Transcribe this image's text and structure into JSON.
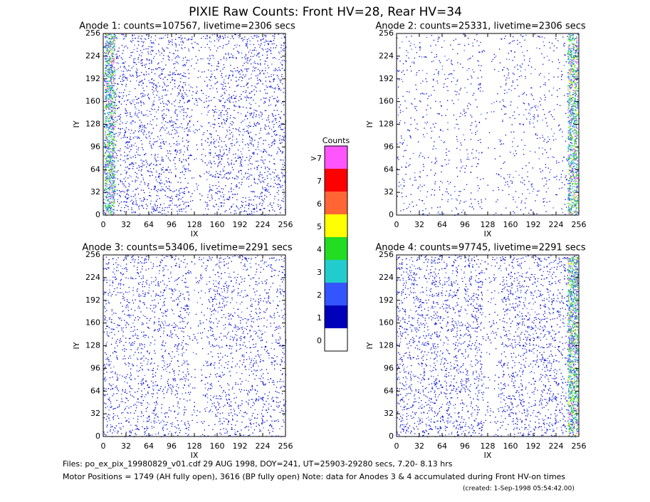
{
  "header": {
    "title": "PIXIE Raw Counts:  Front HV=28, Rear HV=34"
  },
  "chart_data": [
    {
      "type": "heatmap",
      "title": "Anode 1: counts=107567, livetime=2306 secs",
      "xlabel": "IX",
      "ylabel": "IY",
      "xlim": [
        0,
        256
      ],
      "ylim": [
        0,
        256
      ],
      "xticks": [
        0,
        32,
        64,
        96,
        128,
        160,
        192,
        224,
        256
      ],
      "yticks": [
        0,
        32,
        64,
        96,
        128,
        160,
        192,
        224,
        256
      ]
    },
    {
      "type": "heatmap",
      "title": "Anode 2: counts=25331, livetime=2306 secs",
      "xlabel": "IX",
      "ylabel": "IY",
      "xlim": [
        0,
        256
      ],
      "ylim": [
        0,
        256
      ],
      "xticks": [
        0,
        32,
        64,
        96,
        128,
        160,
        192,
        224,
        256
      ],
      "yticks": [
        0,
        32,
        64,
        96,
        128,
        160,
        192,
        224,
        256
      ]
    },
    {
      "type": "heatmap",
      "title": "Anode 3: counts=53406, livetime=2291 secs",
      "xlabel": "IX",
      "ylabel": "IY",
      "xlim": [
        0,
        256
      ],
      "ylim": [
        0,
        256
      ],
      "xticks": [
        0,
        32,
        64,
        96,
        128,
        160,
        192,
        224,
        256
      ],
      "yticks": [
        0,
        32,
        64,
        96,
        128,
        160,
        192,
        224,
        256
      ]
    },
    {
      "type": "heatmap",
      "title": "Anode 4: counts=97745, livetime=2291 secs",
      "xlabel": "IX",
      "ylabel": "IY",
      "xlim": [
        0,
        256
      ],
      "ylim": [
        0,
        256
      ],
      "xticks": [
        0,
        32,
        64,
        96,
        128,
        160,
        192,
        224,
        256
      ],
      "yticks": [
        0,
        32,
        64,
        96,
        128,
        160,
        192,
        224,
        256
      ]
    }
  ],
  "colorbar": {
    "title": "Counts",
    "levels": [
      0,
      1,
      2,
      3,
      4,
      5,
      6,
      7,
      {
        "value": 8,
        "label": ">7"
      }
    ],
    "colors": [
      "#ffffff",
      "#0000bb",
      "#3355ff",
      "#22cccc",
      "#22dd22",
      "#ffff00",
      "#ff6633",
      "#ff0000",
      "#ff55ff"
    ]
  },
  "footer": {
    "files": "Files: po_ex_pix_19980829_v01.cdf    29 AUG 1998, DOY=241, UT=25903-29280 secs,  7.20- 8.13 hrs",
    "motor": "Motor Positions = 1749 (AH fully open), 3616 (BP fully open)    Note: data for Anodes 3 & 4 accumulated during Front HV-on times",
    "created": "(created:  1-Sep-1998 05:54:42.00)"
  }
}
